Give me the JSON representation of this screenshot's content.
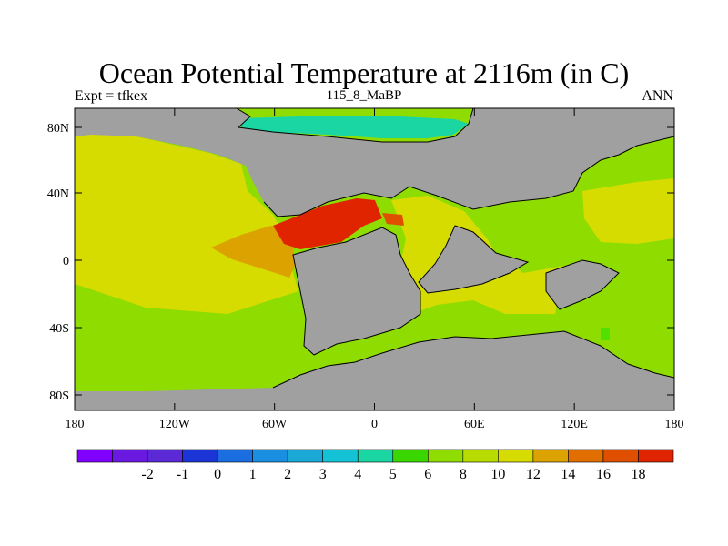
{
  "header": {
    "title": "Ocean Potential Temperature at 2116m (in C)",
    "left_label": "Expt = tfkex",
    "center_label": "115_8_MaBP",
    "right_label": "ANN"
  },
  "axes": {
    "y_ticks": [
      "80N",
      "40N",
      "0",
      "40S",
      "80S"
    ],
    "x_ticks": [
      "180",
      "120W",
      "60W",
      "0",
      "60E",
      "120E",
      "180"
    ]
  },
  "colors": {
    "land": "#a0a0a0",
    "c_10_12": "#8fdc00",
    "c_12_14": "#d6dc00",
    "c_14_16": "#dca300",
    "c_16_18": "#e04f00",
    "c_18_plus": "#e02400",
    "c_5_6": "#1ad6a2",
    "c_8_10": "#52e000"
  },
  "colorbar": {
    "colors": [
      "#7f00ff",
      "#6a1ae0",
      "#5b2ad6",
      "#1a34d6",
      "#1a6ee0",
      "#1a8ee0",
      "#1aa8d6",
      "#14c2d6",
      "#1ad6a2",
      "#3ad600",
      "#8fdc00",
      "#b8dc00",
      "#d6dc00",
      "#dca300",
      "#e06e00",
      "#e04f00",
      "#e02400"
    ],
    "labels": [
      "-2",
      "-1",
      "0",
      "1",
      "2",
      "3",
      "4",
      "5",
      "6",
      "8",
      "10",
      "12",
      "14",
      "16",
      "18"
    ]
  }
}
